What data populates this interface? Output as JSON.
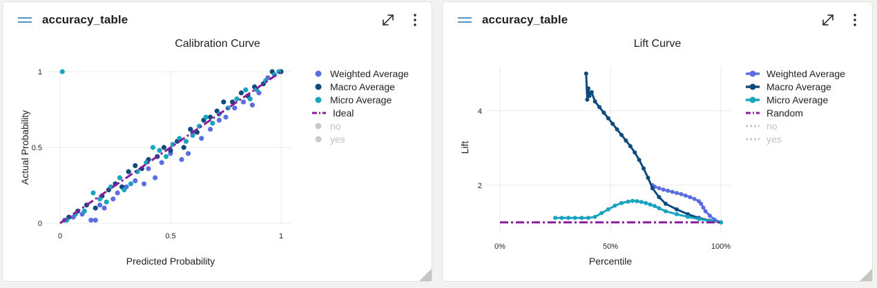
{
  "cards": [
    {
      "title": "accuracy_table",
      "chart_data": {
        "type": "scatter",
        "title": "Calibration Curve",
        "xlabel": "Predicted Probability",
        "ylabel": "Actual Probability",
        "xlim": [
          0,
          1
        ],
        "ylim": [
          0,
          1
        ],
        "xticks": [
          {
            "value": 0,
            "label": "0"
          },
          {
            "value": 0.5,
            "label": "0.5"
          },
          {
            "value": 1,
            "label": "1"
          }
        ],
        "yticks": [
          {
            "value": 0,
            "label": "0"
          },
          {
            "value": 0.5,
            "label": "0.5"
          },
          {
            "value": 1,
            "label": "1"
          }
        ],
        "grid": true,
        "legend_position": "right",
        "series": [
          {
            "name": "Weighted Average",
            "style": "marker",
            "color": "#5b6ee1",
            "visible": true,
            "points": [
              [
                0.02,
                0.02
              ],
              [
                0.06,
                0.04
              ],
              [
                0.1,
                0.06
              ],
              [
                0.14,
                0.02
              ],
              [
                0.16,
                0.02
              ],
              [
                0.18,
                0.12
              ],
              [
                0.2,
                0.1
              ],
              [
                0.24,
                0.16
              ],
              [
                0.26,
                0.2
              ],
              [
                0.3,
                0.24
              ],
              [
                0.34,
                0.28
              ],
              [
                0.38,
                0.26
              ],
              [
                0.4,
                0.36
              ],
              [
                0.43,
                0.3
              ],
              [
                0.46,
                0.4
              ],
              [
                0.5,
                0.46
              ],
              [
                0.55,
                0.42
              ],
              [
                0.58,
                0.46
              ],
              [
                0.6,
                0.6
              ],
              [
                0.64,
                0.56
              ],
              [
                0.68,
                0.62
              ],
              [
                0.72,
                0.68
              ],
              [
                0.75,
                0.7
              ],
              [
                0.79,
                0.76
              ],
              [
                0.83,
                0.8
              ],
              [
                0.87,
                0.78
              ],
              [
                0.9,
                0.86
              ],
              [
                0.94,
                0.96
              ]
            ]
          },
          {
            "name": "Macro Average",
            "style": "marker",
            "color": "#0d4a7e",
            "visible": true,
            "points": [
              [
                0.04,
                0.04
              ],
              [
                0.08,
                0.08
              ],
              [
                0.12,
                0.12
              ],
              [
                0.16,
                0.1
              ],
              [
                0.19,
                0.18
              ],
              [
                0.22,
                0.22
              ],
              [
                0.25,
                0.26
              ],
              [
                0.28,
                0.24
              ],
              [
                0.31,
                0.34
              ],
              [
                0.34,
                0.38
              ],
              [
                0.37,
                0.36
              ],
              [
                0.4,
                0.42
              ],
              [
                0.44,
                0.44
              ],
              [
                0.47,
                0.5
              ],
              [
                0.5,
                0.48
              ],
              [
                0.53,
                0.54
              ],
              [
                0.56,
                0.5
              ],
              [
                0.59,
                0.62
              ],
              [
                0.62,
                0.6
              ],
              [
                0.65,
                0.68
              ],
              [
                0.68,
                0.7
              ],
              [
                0.71,
                0.74
              ],
              [
                0.74,
                0.8
              ],
              [
                0.78,
                0.8
              ],
              [
                0.82,
                0.86
              ],
              [
                0.85,
                0.84
              ],
              [
                0.88,
                0.9
              ],
              [
                0.92,
                0.92
              ],
              [
                0.96,
                1.0
              ],
              [
                1.0,
                1.0
              ]
            ]
          },
          {
            "name": "Micro Average",
            "style": "marker",
            "color": "#1aa3bf",
            "visible": true,
            "points": [
              [
                0.01,
                1.0
              ],
              [
                0.03,
                0.02
              ],
              [
                0.07,
                0.06
              ],
              [
                0.11,
                0.08
              ],
              [
                0.15,
                0.2
              ],
              [
                0.18,
                0.16
              ],
              [
                0.21,
                0.14
              ],
              [
                0.23,
                0.24
              ],
              [
                0.27,
                0.3
              ],
              [
                0.29,
                0.22
              ],
              [
                0.32,
                0.26
              ],
              [
                0.35,
                0.34
              ],
              [
                0.39,
                0.4
              ],
              [
                0.42,
                0.5
              ],
              [
                0.45,
                0.48
              ],
              [
                0.48,
                0.44
              ],
              [
                0.51,
                0.52
              ],
              [
                0.54,
                0.56
              ],
              [
                0.57,
                0.54
              ],
              [
                0.6,
                0.58
              ],
              [
                0.63,
                0.64
              ],
              [
                0.66,
                0.7
              ],
              [
                0.69,
                0.66
              ],
              [
                0.72,
                0.72
              ],
              [
                0.76,
                0.76
              ],
              [
                0.8,
                0.82
              ],
              [
                0.84,
                0.88
              ],
              [
                0.86,
                0.82
              ],
              [
                0.89,
                0.88
              ],
              [
                0.93,
                0.94
              ],
              [
                0.97,
                0.98
              ],
              [
                0.99,
                1.0
              ]
            ]
          },
          {
            "name": "Ideal",
            "style": "dashline",
            "color": "#8a1a9b",
            "visible": true,
            "points": [
              [
                0,
                0
              ],
              [
                1,
                1
              ]
            ]
          },
          {
            "name": "no",
            "style": "marker",
            "color": "#c8c8c8",
            "visible": false,
            "points": []
          },
          {
            "name": "yes",
            "style": "marker",
            "color": "#c8c8c8",
            "visible": false,
            "points": []
          }
        ]
      }
    },
    {
      "title": "accuracy_table",
      "chart_data": {
        "type": "line",
        "title": "Lift Curve",
        "xlabel": "Percentile",
        "ylabel": "Lift",
        "xlim": [
          0,
          100
        ],
        "ylim": [
          0.7,
          5.2
        ],
        "xticks": [
          {
            "value": 0,
            "label": "0%"
          },
          {
            "value": 50,
            "label": "50%"
          },
          {
            "value": 100,
            "label": "100%"
          }
        ],
        "yticks": [
          {
            "value": 2,
            "label": "2"
          },
          {
            "value": 4,
            "label": "4"
          }
        ],
        "grid": true,
        "legend_position": "right",
        "series": [
          {
            "name": "Weighted Average",
            "style": "line-marker",
            "color": "#5b6ee1",
            "visible": true,
            "points": [
              [
                69,
                2.0
              ],
              [
                70,
                1.96
              ],
              [
                72,
                1.92
              ],
              [
                74,
                1.88
              ],
              [
                76,
                1.85
              ],
              [
                78,
                1.82
              ],
              [
                80,
                1.79
              ],
              [
                82,
                1.76
              ],
              [
                84,
                1.72
              ],
              [
                86,
                1.68
              ],
              [
                88,
                1.63
              ],
              [
                90,
                1.57
              ],
              [
                91,
                1.5
              ],
              [
                92,
                1.4
              ],
              [
                93,
                1.3
              ],
              [
                95,
                1.18
              ],
              [
                97,
                1.08
              ],
              [
                100,
                1.0
              ]
            ]
          },
          {
            "name": "Macro Average",
            "style": "line-marker",
            "color": "#0d4a7e",
            "visible": true,
            "points": [
              [
                39,
                5.0
              ],
              [
                39.5,
                4.3
              ],
              [
                40,
                4.6
              ],
              [
                40.5,
                4.4
              ],
              [
                41.5,
                4.5
              ],
              [
                43,
                4.25
              ],
              [
                45,
                4.1
              ],
              [
                47,
                3.95
              ],
              [
                49,
                3.8
              ],
              [
                51,
                3.65
              ],
              [
                53,
                3.5
              ],
              [
                55,
                3.35
              ],
              [
                57,
                3.2
              ],
              [
                59,
                3.05
              ],
              [
                61,
                2.88
              ],
              [
                63,
                2.68
              ],
              [
                65,
                2.45
              ],
              [
                67,
                2.2
              ],
              [
                69,
                1.92
              ],
              [
                72,
                1.68
              ],
              [
                75,
                1.5
              ],
              [
                80,
                1.35
              ],
              [
                85,
                1.22
              ],
              [
                90,
                1.12
              ],
              [
                95,
                1.05
              ],
              [
                100,
                1.0
              ]
            ]
          },
          {
            "name": "Micro Average",
            "style": "line-marker",
            "color": "#1aa3bf",
            "visible": true,
            "points": [
              [
                25,
                1.12
              ],
              [
                28,
                1.12
              ],
              [
                31,
                1.12
              ],
              [
                34,
                1.12
              ],
              [
                37,
                1.12
              ],
              [
                40,
                1.12
              ],
              [
                43,
                1.15
              ],
              [
                46,
                1.25
              ],
              [
                49,
                1.35
              ],
              [
                52,
                1.45
              ],
              [
                55,
                1.52
              ],
              [
                58,
                1.56
              ],
              [
                60,
                1.58
              ],
              [
                62,
                1.57
              ],
              [
                64,
                1.55
              ],
              [
                66,
                1.52
              ],
              [
                68,
                1.48
              ],
              [
                70,
                1.44
              ],
              [
                72,
                1.38
              ],
              [
                75,
                1.3
              ],
              [
                80,
                1.22
              ],
              [
                85,
                1.15
              ],
              [
                90,
                1.09
              ],
              [
                95,
                1.04
              ],
              [
                100,
                1.0
              ]
            ]
          },
          {
            "name": "Random",
            "style": "dashline",
            "color": "#8a1a9b",
            "visible": true,
            "points": [
              [
                0,
                1.0
              ],
              [
                100,
                1.0
              ]
            ]
          },
          {
            "name": "no",
            "style": "dotline",
            "color": "#c8c8c8",
            "visible": false,
            "points": []
          },
          {
            "name": "yes",
            "style": "dotline",
            "color": "#c8c8c8",
            "visible": false,
            "points": []
          }
        ]
      }
    }
  ]
}
